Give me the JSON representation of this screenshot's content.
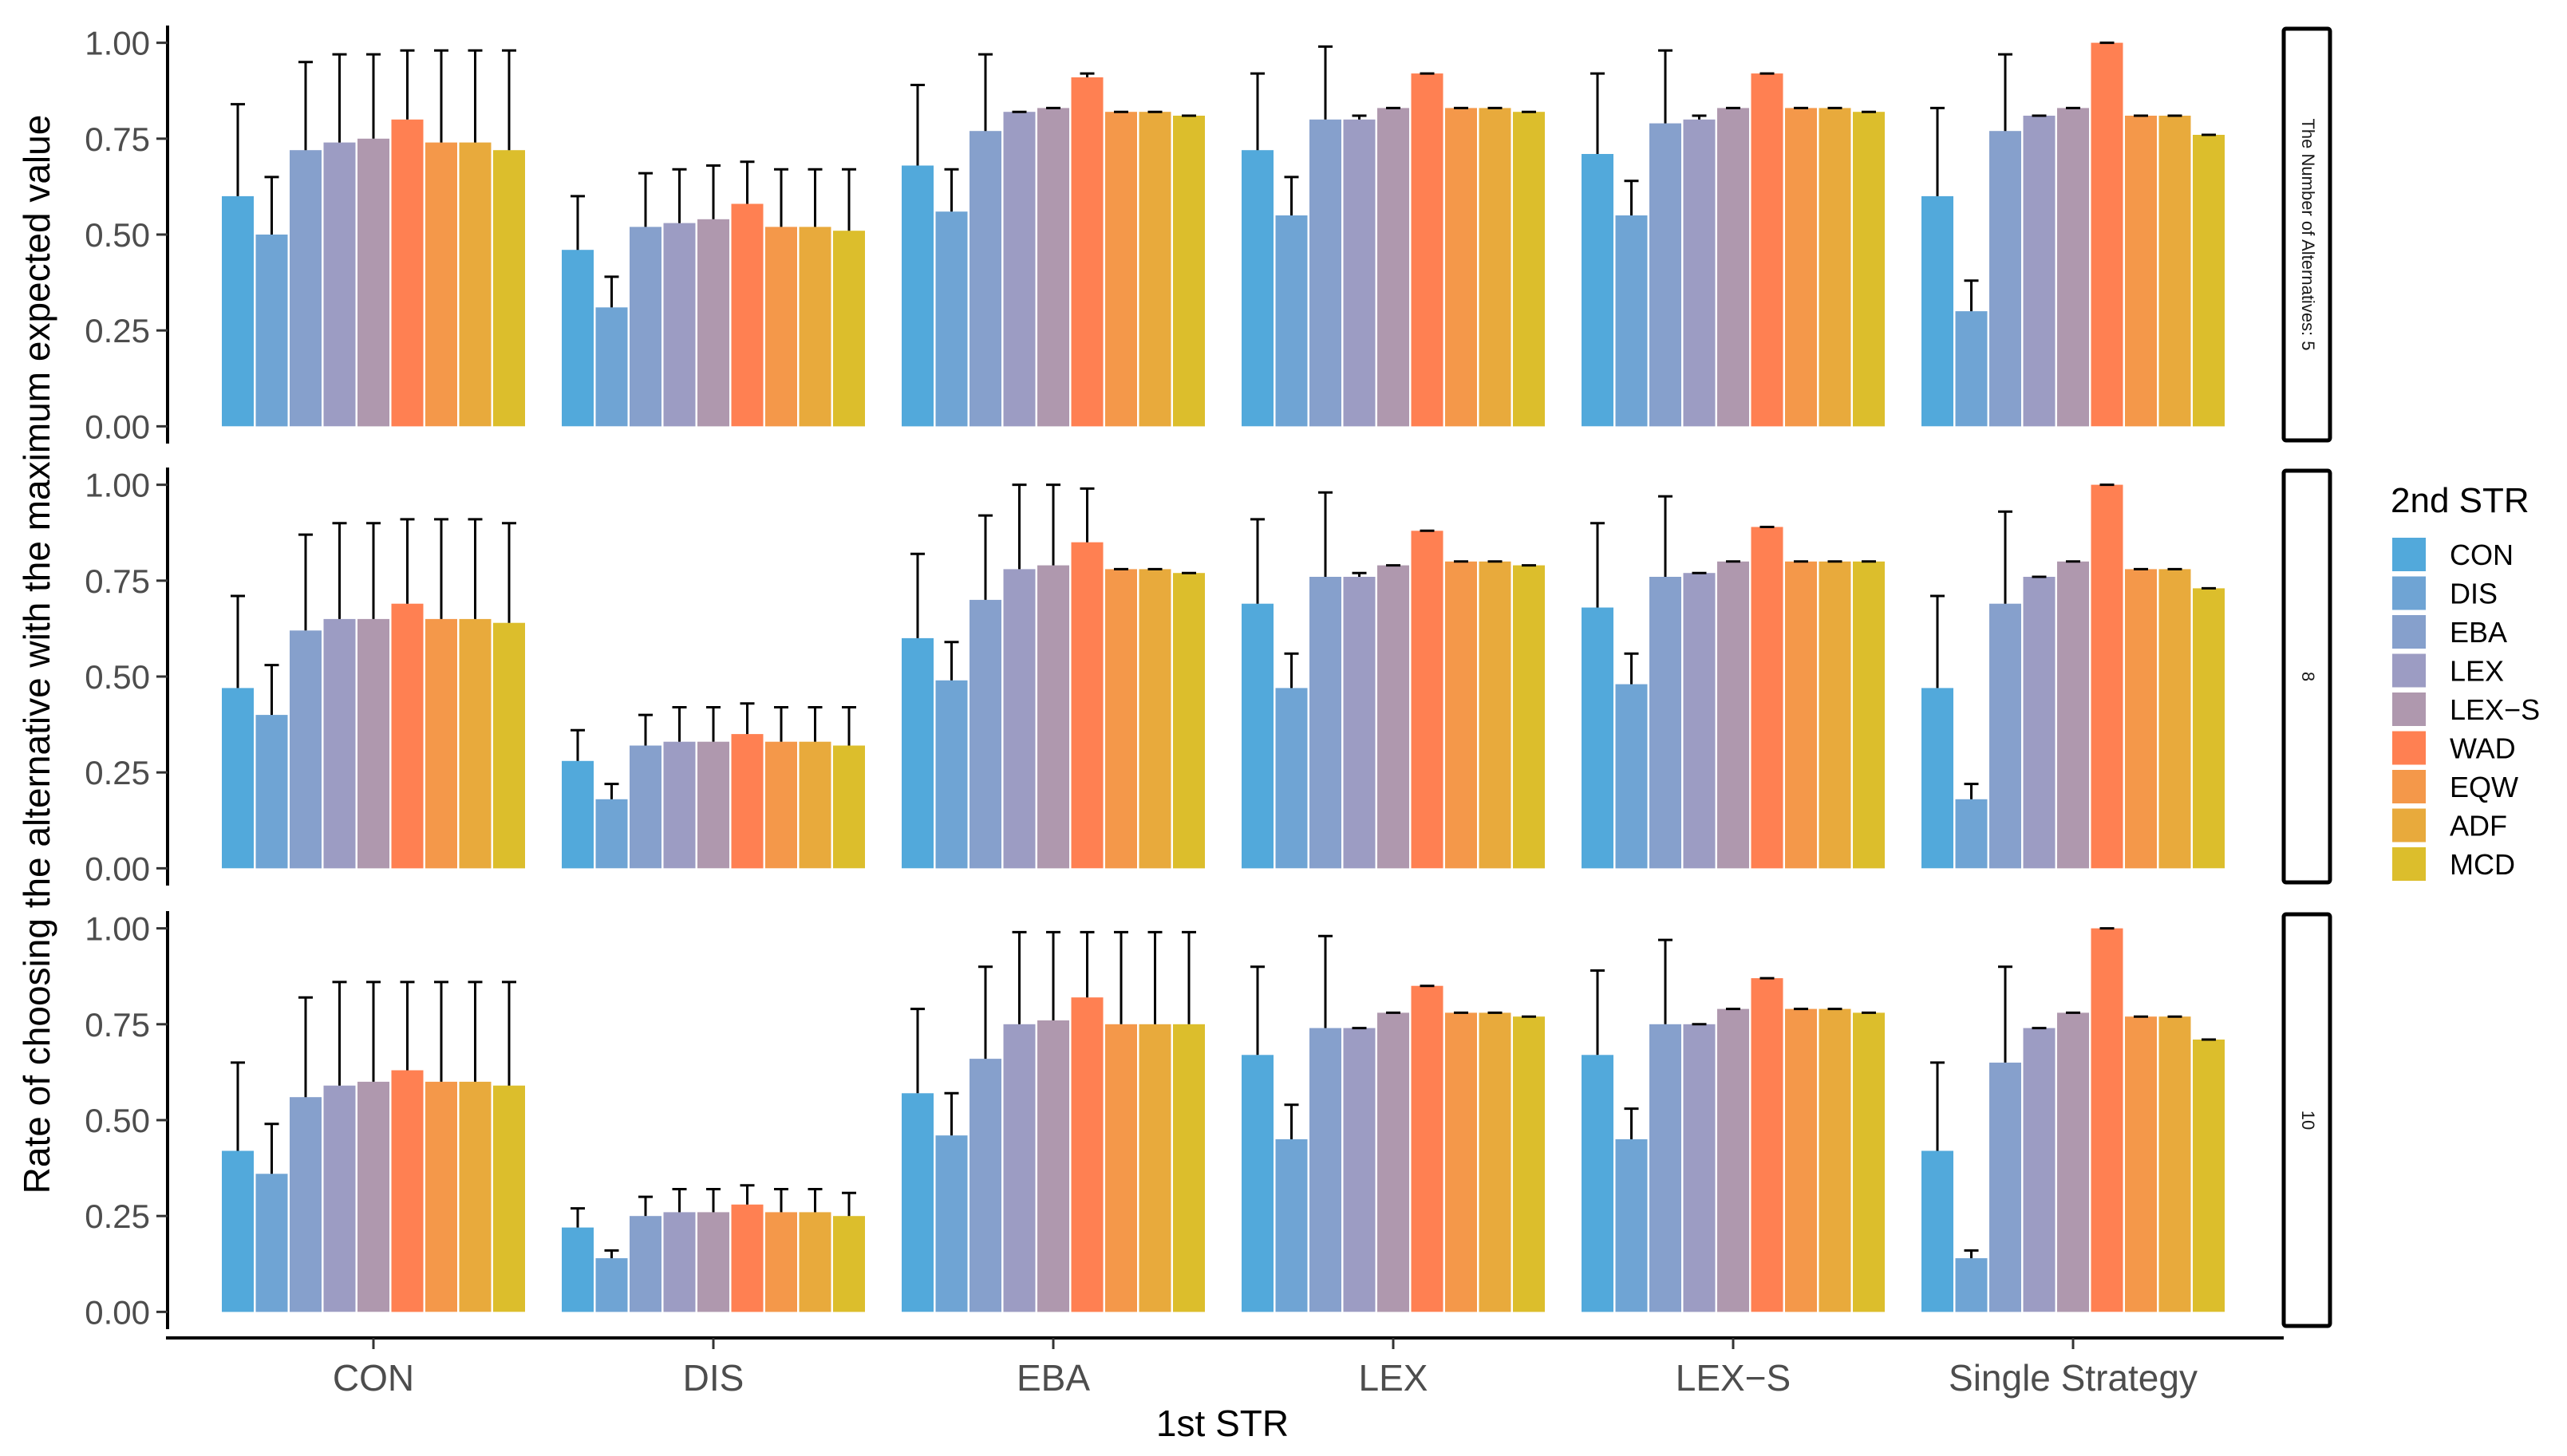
{
  "chart_data": {
    "type": "bar",
    "xlabel": "1st STR",
    "ylabel": "Rate of choosing the alternative with the maximum expected value",
    "ylim": [
      0,
      1
    ],
    "yticks": [
      "0.00",
      "0.25",
      "0.50",
      "0.75",
      "1.00"
    ],
    "categories": [
      "CON",
      "DIS",
      "EBA",
      "LEX",
      "LEX−S",
      "Single Strategy"
    ],
    "legend": {
      "title": "2nd STR",
      "position": "right",
      "entries": [
        "CON",
        "DIS",
        "EBA",
        "LEX",
        "LEX−S",
        "WAD",
        "EQW",
        "ADF",
        "MCD"
      ]
    },
    "series_colors": {
      "CON": "#52A9DB",
      "DIS": "#6FA4D4",
      "EBA": "#86A0CC",
      "LEX": "#9C9CC3",
      "LEX−S": "#AF98AE",
      "WAD": "#FF8052",
      "EQW": "#F4984A",
      "ADF": "#E8AA3C",
      "MCD": "#DCBE2C"
    },
    "panels": [
      {
        "label": "The Number of Alternatives: 5",
        "values": [
          [
            0.6,
            0.5,
            0.72,
            0.74,
            0.75,
            0.8,
            0.74,
            0.74,
            0.72
          ],
          [
            0.46,
            0.31,
            0.52,
            0.53,
            0.54,
            0.58,
            0.52,
            0.52,
            0.51
          ],
          [
            0.68,
            0.56,
            0.77,
            0.82,
            0.83,
            0.91,
            0.82,
            0.82,
            0.81
          ],
          [
            0.72,
            0.55,
            0.8,
            0.8,
            0.83,
            0.92,
            0.83,
            0.83,
            0.82
          ],
          [
            0.71,
            0.55,
            0.79,
            0.8,
            0.83,
            0.92,
            0.83,
            0.83,
            0.82
          ],
          [
            0.6,
            0.3,
            0.77,
            0.81,
            0.83,
            1.0,
            0.81,
            0.81,
            0.76
          ]
        ],
        "error_upper": [
          [
            0.84,
            0.65,
            0.95,
            0.97,
            0.97,
            0.98,
            0.98,
            0.98,
            0.98
          ],
          [
            0.6,
            0.39,
            0.66,
            0.67,
            0.68,
            0.69,
            0.67,
            0.67,
            0.67
          ],
          [
            0.89,
            0.67,
            0.97,
            0.82,
            0.83,
            0.92,
            0.82,
            0.82,
            0.81
          ],
          [
            0.92,
            0.65,
            0.99,
            0.81,
            0.83,
            0.92,
            0.83,
            0.83,
            0.82
          ],
          [
            0.92,
            0.64,
            0.98,
            0.81,
            0.83,
            0.92,
            0.83,
            0.83,
            0.82
          ],
          [
            0.83,
            0.38,
            0.97,
            0.81,
            0.83,
            1.0,
            0.81,
            0.81,
            0.76
          ]
        ]
      },
      {
        "label": "8",
        "values": [
          [
            0.47,
            0.4,
            0.62,
            0.65,
            0.65,
            0.69,
            0.65,
            0.65,
            0.64
          ],
          [
            0.28,
            0.18,
            0.32,
            0.33,
            0.33,
            0.35,
            0.33,
            0.33,
            0.32
          ],
          [
            0.6,
            0.49,
            0.7,
            0.78,
            0.79,
            0.85,
            0.78,
            0.78,
            0.77
          ],
          [
            0.69,
            0.47,
            0.76,
            0.76,
            0.79,
            0.88,
            0.8,
            0.8,
            0.79
          ],
          [
            0.68,
            0.48,
            0.76,
            0.77,
            0.8,
            0.89,
            0.8,
            0.8,
            0.8
          ],
          [
            0.47,
            0.18,
            0.69,
            0.76,
            0.8,
            1.0,
            0.78,
            0.78,
            0.73
          ]
        ],
        "error_upper": [
          [
            0.71,
            0.53,
            0.87,
            0.9,
            0.9,
            0.91,
            0.91,
            0.91,
            0.9
          ],
          [
            0.36,
            0.22,
            0.4,
            0.42,
            0.42,
            0.43,
            0.42,
            0.42,
            0.42
          ],
          [
            0.82,
            0.59,
            0.92,
            1.0,
            1.0,
            0.99,
            0.78,
            0.78,
            0.77
          ],
          [
            0.91,
            0.56,
            0.98,
            0.77,
            0.79,
            0.88,
            0.8,
            0.8,
            0.79
          ],
          [
            0.9,
            0.56,
            0.97,
            0.77,
            0.8,
            0.89,
            0.8,
            0.8,
            0.8
          ],
          [
            0.71,
            0.22,
            0.93,
            0.76,
            0.8,
            1.0,
            0.78,
            0.78,
            0.73
          ]
        ]
      },
      {
        "label": "10",
        "values": [
          [
            0.42,
            0.36,
            0.56,
            0.59,
            0.6,
            0.63,
            0.6,
            0.6,
            0.59
          ],
          [
            0.22,
            0.14,
            0.25,
            0.26,
            0.26,
            0.28,
            0.26,
            0.26,
            0.25
          ],
          [
            0.57,
            0.46,
            0.66,
            0.75,
            0.76,
            0.82,
            0.75,
            0.75,
            0.75
          ],
          [
            0.67,
            0.45,
            0.74,
            0.74,
            0.78,
            0.85,
            0.78,
            0.78,
            0.77
          ],
          [
            0.67,
            0.45,
            0.75,
            0.75,
            0.79,
            0.87,
            0.79,
            0.79,
            0.78
          ],
          [
            0.42,
            0.14,
            0.65,
            0.74,
            0.78,
            1.0,
            0.77,
            0.77,
            0.71
          ]
        ],
        "error_upper": [
          [
            0.65,
            0.49,
            0.82,
            0.86,
            0.86,
            0.86,
            0.86,
            0.86,
            0.86
          ],
          [
            0.27,
            0.16,
            0.3,
            0.32,
            0.32,
            0.33,
            0.32,
            0.32,
            0.31
          ],
          [
            0.79,
            0.57,
            0.9,
            0.99,
            0.99,
            0.99,
            0.99,
            0.99,
            0.99
          ],
          [
            0.9,
            0.54,
            0.98,
            0.74,
            0.78,
            0.85,
            0.78,
            0.78,
            0.77
          ],
          [
            0.89,
            0.53,
            0.97,
            0.75,
            0.79,
            0.87,
            0.79,
            0.79,
            0.78
          ],
          [
            0.65,
            0.16,
            0.9,
            0.74,
            0.78,
            1.0,
            0.77,
            0.77,
            0.71
          ]
        ]
      }
    ]
  }
}
